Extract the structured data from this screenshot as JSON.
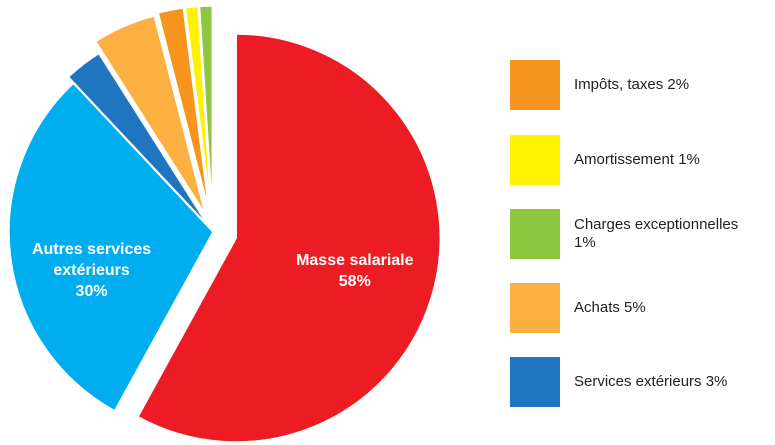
{
  "chart_data": {
    "type": "pie",
    "categories": [
      "Masse salariale",
      "Autres services extérieurs",
      "Services extérieurs",
      "Achats",
      "Impôts, taxes",
      "Amortissement",
      "Charges exceptionnelles"
    ],
    "values": [
      58,
      30,
      3,
      5,
      2,
      1,
      1
    ],
    "value_labels": [
      "58%",
      "30%",
      "3%",
      "5%",
      "2%",
      "1%",
      "1%"
    ],
    "colors": [
      "#ed1c24",
      "#00aeef",
      "#1f75c0",
      "#fbb040",
      "#f7941d",
      "#fff200",
      "#8dc63f"
    ],
    "legend": "right"
  }
}
